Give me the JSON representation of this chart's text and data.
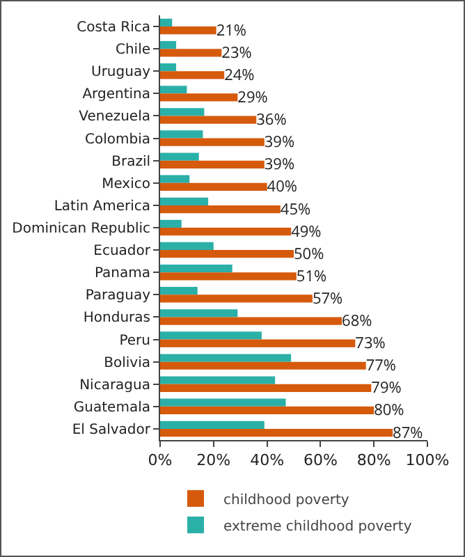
{
  "chart_data": {
    "type": "bar",
    "orientation": "horizontal",
    "categories": [
      "Costa Rica",
      "Chile",
      "Uruguay",
      "Argentina",
      "Venezuela",
      "Colombia",
      "Brazil",
      "Mexico",
      "Latin America",
      "Dominican Republic",
      "Ecuador",
      "Panama",
      "Paraguay",
      "Honduras",
      "Peru",
      "Bolivia",
      "Nicaragua",
      "Guatemala",
      "El Salvador"
    ],
    "series": [
      {
        "name": "childhood poverty",
        "color": "#d55a0c",
        "values": [
          21,
          23,
          24,
          29,
          36,
          39,
          39,
          40,
          45,
          49,
          50,
          51,
          57,
          68,
          73,
          77,
          79,
          80,
          87
        ],
        "value_labels": [
          "21%",
          "23%",
          "24%",
          "29%",
          "36%",
          "39%",
          "39%",
          "40%",
          "45%",
          "49%",
          "50%",
          "51%",
          "57%",
          "68%",
          "73%",
          "77%",
          "79%",
          "80%",
          "87%"
        ]
      },
      {
        "name": "extreme childhood poverty",
        "color": "#2bb0a8",
        "values": [
          4.5,
          6,
          6,
          10,
          16.5,
          16,
          14.5,
          11,
          18,
          8,
          20,
          27,
          14,
          29,
          38,
          49,
          43,
          47,
          39
        ]
      }
    ],
    "xlim": [
      0,
      100
    ],
    "xticks": [
      {
        "value": 0,
        "label": "0%"
      },
      {
        "value": 20,
        "label": "20%"
      },
      {
        "value": 40,
        "label": "40%"
      },
      {
        "value": 60,
        "label": "60%"
      },
      {
        "value": 80,
        "label": "80%"
      },
      {
        "value": 100,
        "label": "100%"
      }
    ],
    "grid": false,
    "legend": "bottom"
  }
}
